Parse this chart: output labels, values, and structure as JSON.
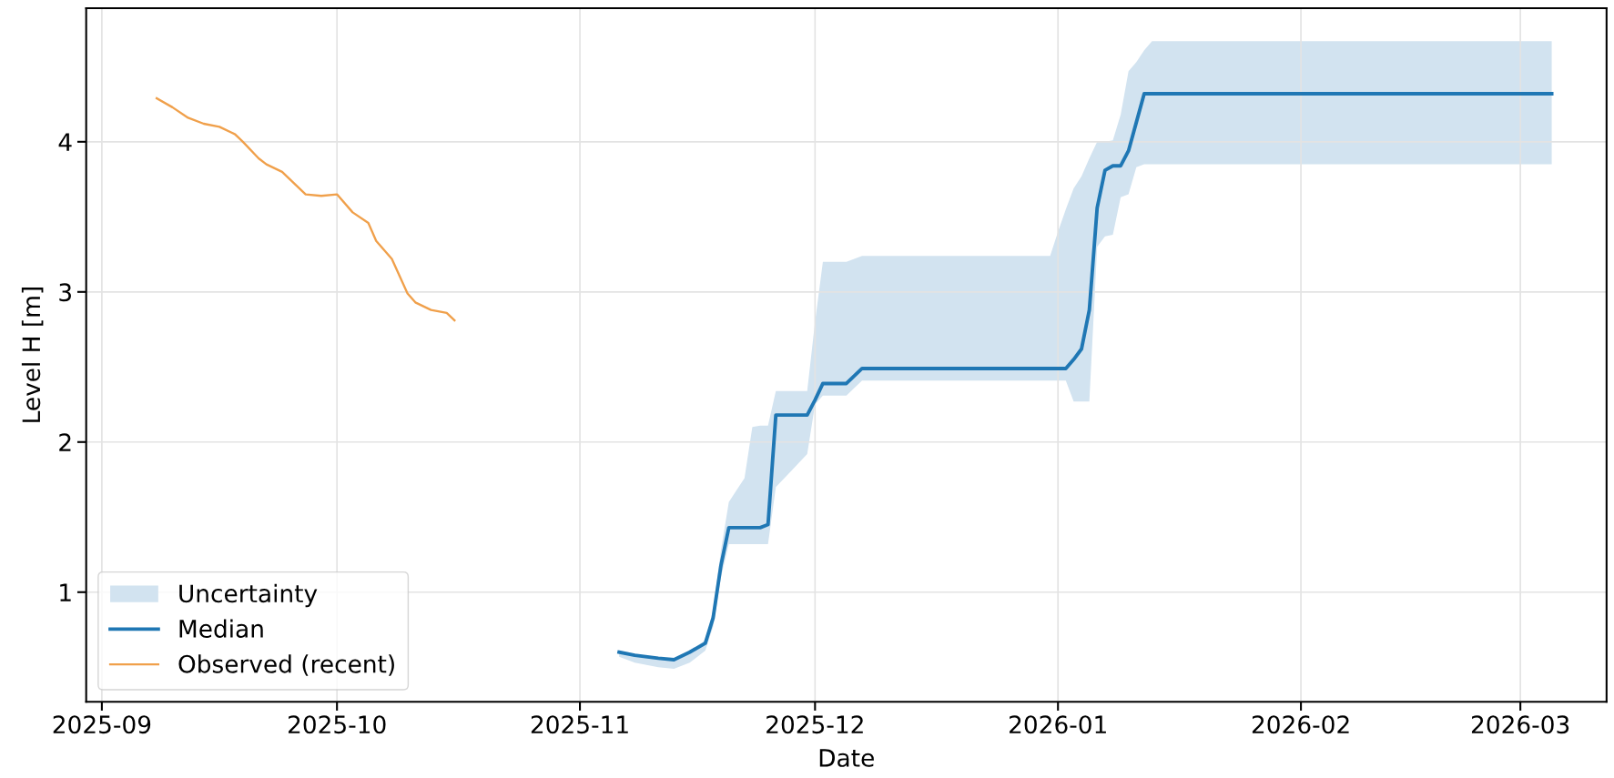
{
  "chart_data": {
    "type": "line",
    "xlabel": "Date",
    "ylabel": "Level H [m]",
    "xlim": [
      "2025-08-30",
      "2026-03-12"
    ],
    "xticks": [
      "2025-09",
      "2025-10",
      "2025-11",
      "2025-12",
      "2026-01",
      "2026-02",
      "2026-03"
    ],
    "ylim": [
      0.27,
      4.89
    ],
    "yticks": [
      1,
      2,
      3,
      4
    ],
    "grid": true,
    "legend": "bottom left",
    "series": [
      {
        "name": "Uncertainty",
        "type": "area",
        "color": "#d2e3f0"
      },
      {
        "name": "Median",
        "color": "#1f77b4",
        "x": [
          "2025-11-06",
          "2025-11-08",
          "2025-11-11",
          "2025-11-13",
          "2025-11-15",
          "2025-11-17",
          "2025-11-18",
          "2025-11-19",
          "2025-11-20",
          "2025-11-21",
          "2025-11-22",
          "2025-11-23",
          "2025-11-24",
          "2025-11-25",
          "2025-11-26",
          "2025-11-28",
          "2025-11-30",
          "2025-12-01",
          "2025-12-02",
          "2025-12-05",
          "2025-12-06",
          "2025-12-07",
          "2025-12-31",
          "2026-01-01",
          "2026-01-02",
          "2026-01-03",
          "2026-01-04",
          "2026-01-05",
          "2026-01-06",
          "2026-01-07",
          "2026-01-08",
          "2026-01-09",
          "2026-01-10",
          "2026-01-11",
          "2026-01-12",
          "2026-01-13",
          "2026-03-05"
        ],
        "values": [
          0.6,
          0.58,
          0.56,
          0.55,
          0.6,
          0.66,
          0.83,
          1.18,
          1.43,
          1.43,
          1.43,
          1.43,
          1.43,
          1.45,
          2.18,
          2.18,
          2.18,
          2.28,
          2.39,
          2.39,
          2.44,
          2.49,
          2.49,
          2.49,
          2.49,
          2.55,
          2.62,
          2.88,
          3.56,
          3.81,
          3.84,
          3.84,
          3.94,
          4.13,
          4.32,
          4.32,
          4.32
        ],
        "lower": [
          0.57,
          0.53,
          0.5,
          0.49,
          0.53,
          0.61,
          0.77,
          1.1,
          1.32,
          1.32,
          1.32,
          1.32,
          1.32,
          1.32,
          1.7,
          1.81,
          1.92,
          2.25,
          2.31,
          2.31,
          2.36,
          2.41,
          2.41,
          2.41,
          2.41,
          2.27,
          2.27,
          2.27,
          3.3,
          3.37,
          3.38,
          3.63,
          3.65,
          3.83,
          3.85,
          3.85,
          3.85
        ],
        "upper": [
          0.61,
          0.59,
          0.56,
          0.56,
          0.61,
          0.68,
          0.88,
          1.28,
          1.6,
          1.68,
          1.76,
          2.1,
          2.11,
          2.11,
          2.34,
          2.34,
          2.34,
          2.8,
          3.2,
          3.2,
          3.22,
          3.24,
          3.24,
          3.4,
          3.55,
          3.69,
          3.77,
          3.89,
          4.0,
          4.0,
          4.01,
          4.18,
          4.47,
          4.53,
          4.61,
          4.67,
          4.67
        ]
      },
      {
        "name": "Observed (recent)",
        "color": "#f0a04b",
        "x": [
          "2025-09-08",
          "2025-09-10",
          "2025-09-12",
          "2025-09-14",
          "2025-09-16",
          "2025-09-18",
          "2025-09-19",
          "2025-09-21",
          "2025-09-22",
          "2025-09-24",
          "2025-09-27",
          "2025-09-29",
          "2025-10-01",
          "2025-10-03",
          "2025-10-05",
          "2025-10-06",
          "2025-10-08",
          "2025-10-10",
          "2025-10-11",
          "2025-10-13",
          "2025-10-15",
          "2025-10-16"
        ],
        "values": [
          4.29,
          4.23,
          4.16,
          4.12,
          4.1,
          4.05,
          4.0,
          3.89,
          3.85,
          3.8,
          3.65,
          3.64,
          3.65,
          3.53,
          3.46,
          3.34,
          3.22,
          2.99,
          2.93,
          2.88,
          2.86,
          2.81
        ]
      }
    ]
  }
}
